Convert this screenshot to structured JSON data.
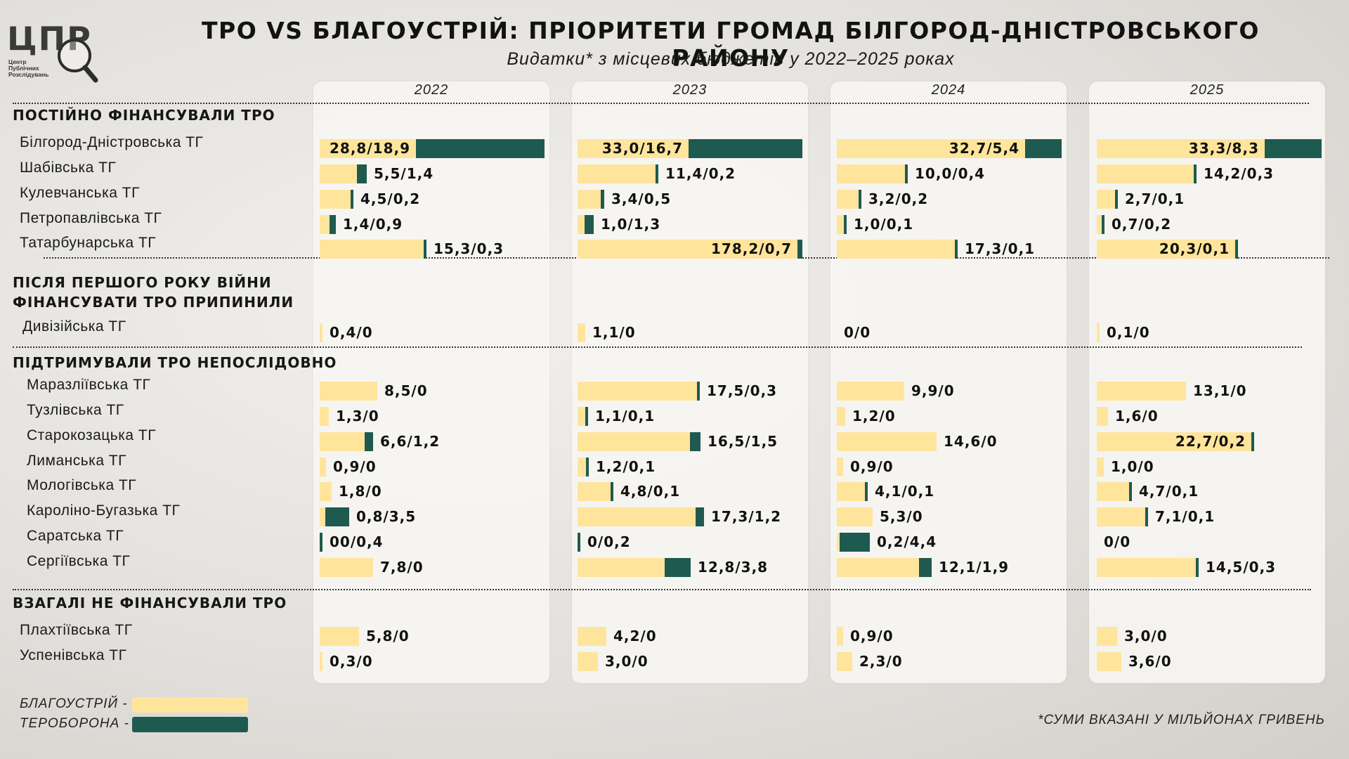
{
  "logo": {
    "letters": "ЦПР",
    "sub": [
      "Центр",
      "Публічних",
      "Розслідувань"
    ]
  },
  "title": "ТРО VS БЛАГОУСТРІЙ: ПРІОРИТЕТИ ГРОМАД БІЛГОРОД-ДНІСТРОВСЬКОГО РАЙОНУ",
  "subtitle": "Видатки* з місцевих бюджетів у 2022–2025 роках",
  "legend": {
    "blago": "БЛАГОУСТРІЙ -",
    "tro": "ТЕРОБОРОНА -"
  },
  "colors": {
    "blago": "#ffe59c",
    "tro": "#1f5a50",
    "panel": "#f6f5f2"
  },
  "footnote": "*СУМИ ВКАЗАНІ У МІЛЬЙОНАХ ГРИВЕНЬ",
  "chart_data": {
    "type": "bar",
    "orientation": "horizontal",
    "stacked": true,
    "years": [
      "2022",
      "2023",
      "2024",
      "2025"
    ],
    "series_names": [
      "БЛАГОУСТРІЙ",
      "ТЕРОБОРОНА"
    ],
    "groups": [
      {
        "title": "ПОСТІЙНО ФІНАНСУВАЛИ ТРО",
        "rows": [
          {
            "name": "Білгород-Дністровська ТГ",
            "labels": [
              "28,8/18,9",
              "33,0/16,7",
              "32,7/5,4",
              "33,3/8,3"
            ],
            "blago": [
              28.8,
              33.0,
              32.7,
              33.3
            ],
            "tro": [
              18.9,
              16.7,
              5.4,
              8.3
            ]
          },
          {
            "name": "Шабівська ТГ",
            "labels": [
              "5,5/1,4",
              "11,4/0,2",
              "10,0/0,4",
              "14,2/0,3"
            ],
            "blago": [
              5.5,
              11.4,
              10.0,
              14.2
            ],
            "tro": [
              1.4,
              0.2,
              0.4,
              0.3
            ]
          },
          {
            "name": "Кулевчанська ТГ",
            "labels": [
              "4,5/0,2",
              "3,4/0,5",
              "3,2/0,2",
              "2,7/0,1"
            ],
            "blago": [
              4.5,
              3.4,
              3.2,
              2.7
            ],
            "tro": [
              0.2,
              0.5,
              0.2,
              0.1
            ]
          },
          {
            "name": "Петропавлівська ТГ",
            "labels": [
              "1,4/0,9",
              "1,0/1,3",
              "1,0/0,1",
              "0,7/0,2"
            ],
            "blago": [
              1.4,
              1.0,
              1.0,
              0.7
            ],
            "tro": [
              0.9,
              1.3,
              0.1,
              0.2
            ]
          },
          {
            "name": "Татарбунарська ТГ",
            "labels": [
              "15,3/0,3",
              "178,2/0,7",
              "17,3/0,1",
              "20,3/0,1"
            ],
            "blago": [
              15.3,
              178.2,
              17.3,
              20.3
            ],
            "tro": [
              0.3,
              0.7,
              0.1,
              0.1
            ]
          }
        ]
      },
      {
        "title": "ПІСЛЯ ПЕРШОГО РОКУ ВІЙНИ ФІНАНСУВАТИ ТРО ПРИПИНИЛИ",
        "rows": [
          {
            "name": "Дивізійська ТГ",
            "labels": [
              "0,4/0",
              "1,1/0",
              "0/0",
              "0,1/0"
            ],
            "blago": [
              0.4,
              1.1,
              0,
              0.1
            ],
            "tro": [
              0,
              0,
              0,
              0
            ]
          }
        ]
      },
      {
        "title": "ПІДТРИМУВАЛИ ТРО НЕПОСЛІДОВНО",
        "rows": [
          {
            "name": "Маразліївська ТГ",
            "labels": [
              "8,5/0",
              "17,5/0,3",
              "9,9/0",
              "13,1/0"
            ],
            "blago": [
              8.5,
              17.5,
              9.9,
              13.1
            ],
            "tro": [
              0,
              0.3,
              0,
              0
            ]
          },
          {
            "name": "Тузлівська ТГ",
            "labels": [
              "1,3/0",
              "1,1/0,1",
              "1,2/0",
              "1,6/0"
            ],
            "blago": [
              1.3,
              1.1,
              1.2,
              1.6
            ],
            "tro": [
              0,
              0.1,
              0,
              0
            ]
          },
          {
            "name": "Старокозацька ТГ",
            "labels": [
              "6,6/1,2",
              "16,5/1,5",
              "14,6/0",
              "22,7/0,2"
            ],
            "blago": [
              6.6,
              16.5,
              14.6,
              22.7
            ],
            "tro": [
              1.2,
              1.5,
              0,
              0.2
            ]
          },
          {
            "name": "Лиманська ТГ",
            "labels": [
              "0,9/0",
              "1,2/0,1",
              "0,9/0",
              "1,0/0"
            ],
            "blago": [
              0.9,
              1.2,
              0.9,
              1.0
            ],
            "tro": [
              0,
              0.1,
              0,
              0
            ]
          },
          {
            "name": "Мологівська ТГ",
            "labels": [
              "1,8/0",
              "4,8/0,1",
              "4,1/0,1",
              "4,7/0,1"
            ],
            "blago": [
              1.8,
              4.8,
              4.1,
              4.7
            ],
            "tro": [
              0,
              0.1,
              0.1,
              0.1
            ]
          },
          {
            "name": "Кароліно-Бугазька ТГ",
            "labels": [
              "0,8/3,5",
              "17,3/1,2",
              "5,3/0",
              "7,1/0,1"
            ],
            "blago": [
              0.8,
              17.3,
              5.3,
              7.1
            ],
            "tro": [
              3.5,
              1.2,
              0,
              0.1
            ]
          },
          {
            "name": "Саратська ТГ",
            "labels": [
              "00/0,4",
              "0/0,2",
              "0,2/4,4",
              "0/0"
            ],
            "blago": [
              0,
              0,
              0.2,
              0
            ],
            "tro": [
              0.4,
              0.2,
              4.4,
              0
            ]
          },
          {
            "name": "Сергіївська ТГ",
            "labels": [
              "7,8/0",
              "12,8/3,8",
              "12,1/1,9",
              "14,5/0,3"
            ],
            "blago": [
              7.8,
              12.8,
              12.1,
              14.5
            ],
            "tro": [
              0,
              3.8,
              1.9,
              0.3
            ]
          }
        ]
      },
      {
        "title": "ВЗАГАЛІ НЕ ФІНАНСУВАЛИ ТРО",
        "rows": [
          {
            "name": "Плахтіївська ТГ",
            "labels": [
              "5,8/0",
              "4,2/0",
              "0,9/0",
              "3,0/0"
            ],
            "blago": [
              5.8,
              4.2,
              0.9,
              3.0
            ],
            "tro": [
              0,
              0,
              0,
              0
            ]
          },
          {
            "name": "Успенівська ТГ",
            "labels": [
              "0,3/0",
              "3,0/0",
              "2,3/0",
              "3,6/0"
            ],
            "blago": [
              0.3,
              3.0,
              2.3,
              3.6
            ],
            "tro": [
              0,
              0,
              0,
              0
            ]
          }
        ]
      }
    ]
  }
}
